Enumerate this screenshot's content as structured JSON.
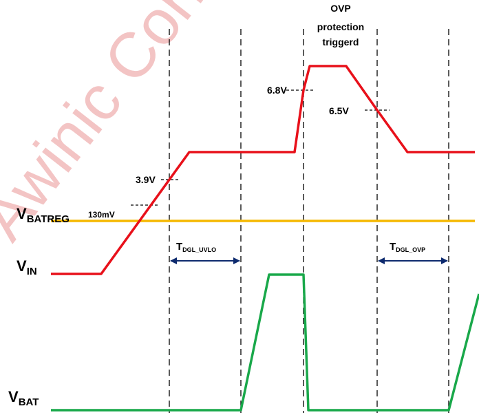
{
  "watermark": {
    "text": "Awinic Confidential",
    "color": "#f2bfc0"
  },
  "colors": {
    "vin": "#e8101a",
    "vbat": "#19a84a",
    "vbatreg": "#f5b800",
    "guides": "#000000",
    "arrow": "#0d2a6e"
  },
  "signals": {
    "vin": {
      "main": "V",
      "sub": "IN"
    },
    "vbat": {
      "main": "V",
      "sub": "BAT"
    },
    "vbatreg": {
      "main": "V",
      "sub": "BATREG"
    }
  },
  "annotations": {
    "v39": "3.9V",
    "v68": "6.8V",
    "v65": "6.5V",
    "mv130": "130mV",
    "ovp_line1": "OVP",
    "ovp_line2": "protection",
    "ovp_line3": "triggerd"
  },
  "timing": {
    "uvlo": {
      "main": "T",
      "sub": "DGL_UVLO"
    },
    "ovp": {
      "main": "T",
      "sub": "DGL_OVP"
    }
  }
}
